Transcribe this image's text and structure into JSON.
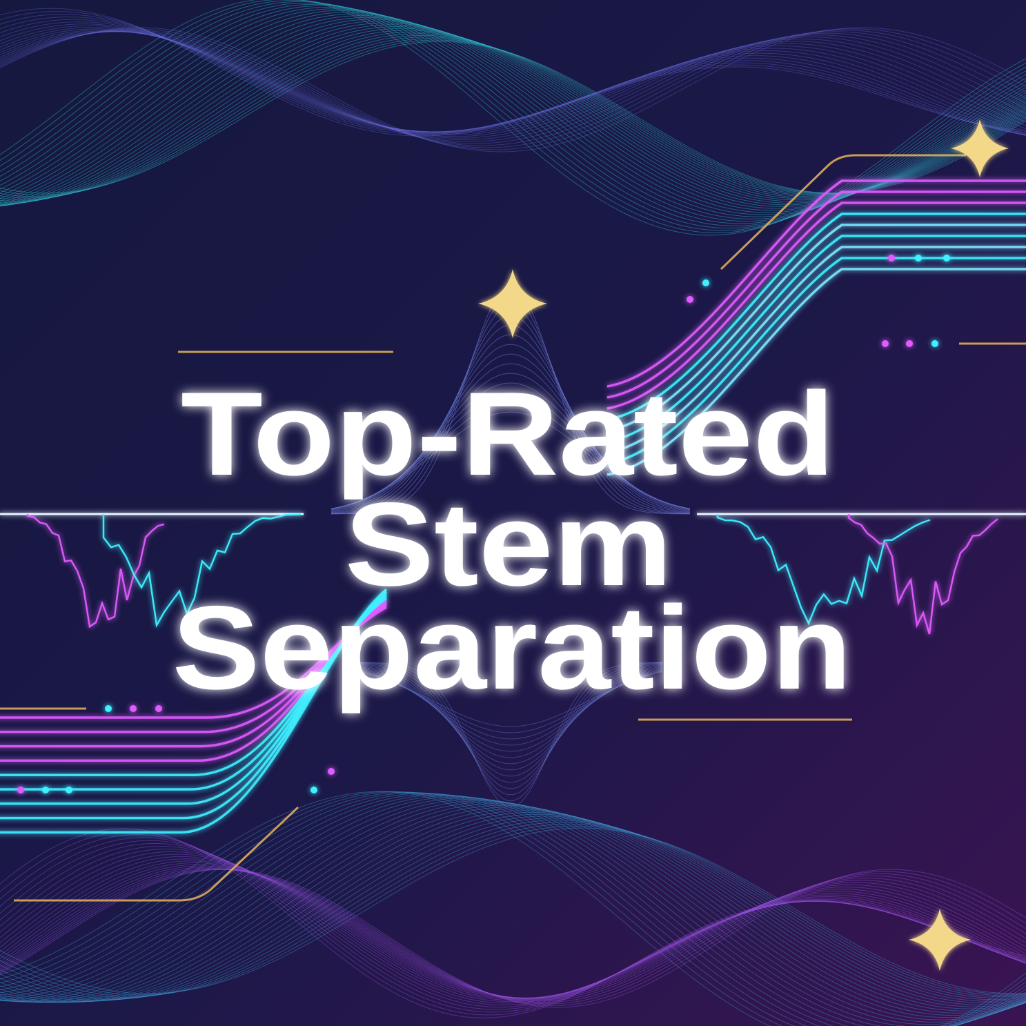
{
  "title": {
    "lines": [
      "Top-Rated",
      "Stem",
      "Separation"
    ]
  },
  "colors": {
    "background_top": "#15183f",
    "background_bottom": "#3a1452",
    "neon_cyan": "#3ff0ff",
    "neon_magenta": "#e05cff",
    "gold": "#e8b45a",
    "text": "#ffffff"
  },
  "decorations": {
    "icons": [
      "sparkle-icon",
      "waveform-icon"
    ]
  }
}
